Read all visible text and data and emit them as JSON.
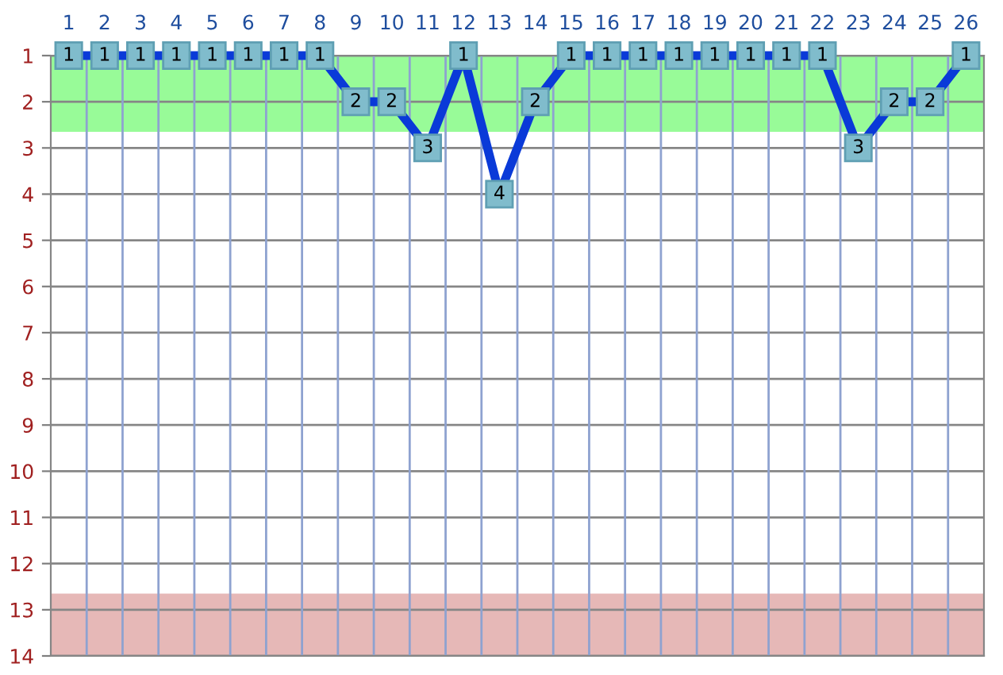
{
  "chart_data": {
    "type": "line",
    "categories": [
      "1",
      "2",
      "3",
      "4",
      "5",
      "6",
      "7",
      "8",
      "9",
      "10",
      "11",
      "12",
      "13",
      "14",
      "15",
      "16",
      "17",
      "18",
      "19",
      "20",
      "21",
      "22",
      "23",
      "24",
      "25",
      "26"
    ],
    "series": [
      {
        "color": "#0a3ad8",
        "values": [
          1,
          1,
          1,
          1,
          1,
          1,
          1,
          1,
          2,
          2,
          3,
          1,
          4,
          2,
          1,
          1,
          1,
          1,
          1,
          1,
          1,
          1,
          3,
          2,
          2,
          1
        ]
      }
    ],
    "ylim": [
      14,
      1
    ],
    "yticks": [
      1,
      2,
      3,
      4,
      5,
      6,
      7,
      8,
      9,
      10,
      11,
      12,
      13,
      14
    ],
    "bands": [
      {
        "axis": "y",
        "from": 1,
        "to": 2.65,
        "color": "#98fb98"
      },
      {
        "axis": "y",
        "from": 12.65,
        "to": 14,
        "color": "#e6b8b7"
      }
    ],
    "grid": true,
    "marker": "square",
    "data_labels": true
  }
}
